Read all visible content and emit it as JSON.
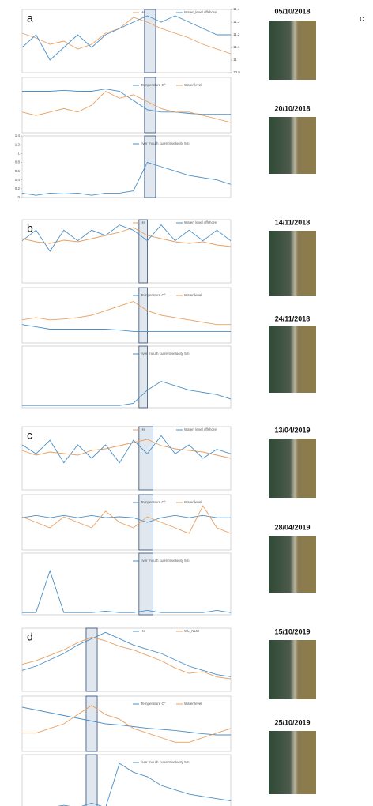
{
  "figure_label": "c",
  "panels": [
    {
      "letter": "a",
      "images": [
        "05/10/2018",
        "20/10/2018"
      ]
    },
    {
      "letter": "b",
      "images": [
        "14/11/2018",
        "24/11/2018"
      ]
    },
    {
      "letter": "c",
      "images": [
        "13/04/2019",
        "28/04/2019"
      ]
    },
    {
      "letter": "d",
      "images": [
        "15/10/2019",
        "25/10/2019"
      ]
    }
  ],
  "chart_data": [
    {
      "type": "line",
      "highlight": [
        8.8,
        9.6
      ],
      "ylim": [
        0,
        4
      ],
      "y2lim": [
        10.9,
        11.4
      ],
      "yticks": [
        11.4,
        11.3,
        11.2,
        11.1,
        11,
        10.9
      ],
      "yticks_axis": "y2",
      "series": [
        {
          "name": "Hs",
          "color": "#e8a060",
          "values": [
            2.5,
            2.2,
            1.8,
            2,
            1.5,
            1.8,
            2.5,
            2.8,
            3.5,
            3.2,
            2.8,
            2.5,
            2.2,
            1.8,
            1.5,
            1.2
          ]
        },
        {
          "name": "Water_level offshore",
          "color": "#4a90c8",
          "axis": "y2",
          "values": [
            11.1,
            11.2,
            11.0,
            11.1,
            11.2,
            11.1,
            11.2,
            11.25,
            11.3,
            11.35,
            11.3,
            11.35,
            11.3,
            11.25,
            11.2,
            11.2
          ]
        }
      ]
    },
    {
      "type": "line",
      "highlight": [
        8.8,
        9.6
      ],
      "ylim": [
        10,
        22
      ],
      "y2lim": [
        1,
        1.8
      ],
      "series": [
        {
          "name": "Temperature C°",
          "color": "#4a90c8",
          "values": [
            19,
            19,
            19,
            19.2,
            19,
            19,
            19.5,
            19,
            17,
            15,
            14.5,
            14.5,
            14.2,
            14,
            14,
            14
          ]
        },
        {
          "name": "Water level",
          "color": "#e8a060",
          "axis": "y2",
          "values": [
            1.3,
            1.25,
            1.3,
            1.35,
            1.3,
            1.4,
            1.6,
            1.5,
            1.55,
            1.45,
            1.35,
            1.3,
            1.3,
            1.25,
            1.2,
            1.15
          ]
        }
      ]
    },
    {
      "type": "line",
      "highlight": [
        8.8,
        9.6
      ],
      "ylim": [
        0,
        1.4
      ],
      "yticks": [
        1.4,
        1.2,
        1,
        0.8,
        0.6,
        0.4,
        0.2,
        0
      ],
      "series": [
        {
          "name": "river mouth current velocity 5m",
          "color": "#4a90c8",
          "values": [
            0.1,
            0.05,
            0.1,
            0.08,
            0.1,
            0.05,
            0.1,
            0.1,
            0.15,
            0.8,
            0.7,
            0.6,
            0.5,
            0.45,
            0.4,
            0.3
          ]
        }
      ]
    },
    {
      "type": "line",
      "highlight": [
        8.4,
        9.0
      ],
      "ylim": [
        0,
        4
      ],
      "y2lim": [
        10.8,
        11.4
      ],
      "series": [
        {
          "name": "Hs",
          "color": "#e8a060",
          "values": [
            2.8,
            2.6,
            2.5,
            2.7,
            2.6,
            2.8,
            3.0,
            3.2,
            3.5,
            3.0,
            2.8,
            2.6,
            2.5,
            2.6,
            2.4,
            2.3
          ]
        },
        {
          "name": "Water_level offshore",
          "color": "#4a90c8",
          "axis": "y2",
          "values": [
            11.2,
            11.3,
            11.1,
            11.3,
            11.2,
            11.3,
            11.25,
            11.35,
            11.3,
            11.2,
            11.35,
            11.2,
            11.3,
            11.2,
            11.3,
            11.2
          ]
        }
      ]
    },
    {
      "type": "line",
      "highlight": [
        8.4,
        9.0
      ],
      "ylim": [
        10,
        22
      ],
      "series": [
        {
          "name": "Temperature C°",
          "color": "#4a90c8",
          "values": [
            14,
            13.5,
            13,
            13,
            13,
            13,
            13,
            12.8,
            12.5,
            12.5,
            12.5,
            12.5,
            12.5,
            12.5,
            12.5,
            12.5
          ]
        },
        {
          "name": "Water level",
          "color": "#e8a060",
          "values": [
            15,
            15.5,
            15,
            15.2,
            15.5,
            16,
            17,
            18,
            19,
            17,
            16,
            15.5,
            15,
            14.5,
            14,
            14
          ]
        }
      ]
    },
    {
      "type": "line",
      "highlight": [
        8.4,
        9.0
      ],
      "ylim": [
        0,
        1.4
      ],
      "series": [
        {
          "name": "river mouth current velocity 5m",
          "color": "#4a90c8",
          "values": [
            0.05,
            0.05,
            0.05,
            0.05,
            0.05,
            0.05,
            0.05,
            0.05,
            0.1,
            0.4,
            0.6,
            0.5,
            0.4,
            0.35,
            0.3,
            0.2
          ]
        }
      ]
    },
    {
      "type": "line",
      "highlight": [
        8.4,
        9.4
      ],
      "ylim": [
        0,
        4
      ],
      "y2lim": [
        10.7,
        11.4
      ],
      "series": [
        {
          "name": "Hs",
          "color": "#e8a060",
          "values": [
            2.5,
            2.2,
            2.4,
            2.3,
            2.2,
            2.5,
            2.6,
            2.8,
            3,
            3.2,
            2.8,
            2.6,
            2.5,
            2.4,
            2.2,
            2
          ]
        },
        {
          "name": "Water_level offshore",
          "color": "#4a90c8",
          "axis": "y2",
          "values": [
            11.2,
            11.1,
            11.25,
            11.0,
            11.2,
            11.05,
            11.2,
            11.0,
            11.25,
            11.1,
            11.3,
            11.1,
            11.2,
            11.05,
            11.15,
            11.1
          ]
        }
      ]
    },
    {
      "type": "line",
      "highlight": [
        8.4,
        9.4
      ],
      "ylim": [
        10,
        22
      ],
      "y2lim": [
        0.8,
        1.8
      ],
      "series": [
        {
          "name": "Temperature C°",
          "color": "#4a90c8",
          "values": [
            17,
            17.5,
            17,
            17.5,
            17,
            17.5,
            17,
            17.2,
            17,
            16,
            17,
            17.5,
            17,
            17.5,
            17,
            17
          ]
        },
        {
          "name": "Water level",
          "color": "#e8a060",
          "axis": "y2",
          "values": [
            1.4,
            1.3,
            1.2,
            1.4,
            1.3,
            1.2,
            1.5,
            1.3,
            1.2,
            1.4,
            1.3,
            1.2,
            1.1,
            1.6,
            1.2,
            1.1
          ]
        }
      ]
    },
    {
      "type": "line",
      "highlight": [
        8.4,
        9.4
      ],
      "ylim": [
        0,
        1.4
      ],
      "series": [
        {
          "name": "river mouth current velocity 5m",
          "color": "#4a90c8",
          "values": [
            0.05,
            0.05,
            1.0,
            0.05,
            0.05,
            0.05,
            0.08,
            0.05,
            0.05,
            0.1,
            0.05,
            0.05,
            0.05,
            0.05,
            0.1,
            0.05
          ]
        }
      ]
    },
    {
      "type": "line",
      "highlight": [
        4.6,
        5.4
      ],
      "ylim": [
        0,
        3
      ],
      "y2lim": [
        0.5,
        4
      ],
      "series": [
        {
          "name": "Hs",
          "color": "#4a90c8",
          "values": [
            1,
            1.2,
            1.5,
            1.8,
            2.2,
            2.5,
            2.8,
            2.5,
            2.2,
            2,
            1.8,
            1.5,
            1.2,
            1,
            0.8,
            0.7
          ]
        },
        {
          "name": "WL_NLM",
          "color": "#e8a060",
          "axis": "y2",
          "values": [
            2,
            2.2,
            2.5,
            2.8,
            3.2,
            3.5,
            3.3,
            3,
            2.8,
            2.5,
            2.2,
            1.8,
            1.5,
            1.6,
            1.3,
            1.2
          ]
        }
      ]
    },
    {
      "type": "line",
      "highlight": [
        4.6,
        5.4
      ],
      "ylim": [
        10,
        20
      ],
      "y2lim": [
        0.8,
        2
      ],
      "series": [
        {
          "name": "Temperature C°",
          "color": "#4a90c8",
          "values": [
            18,
            17.5,
            17,
            16.5,
            16,
            15.5,
            15,
            14.8,
            14.5,
            14.2,
            14,
            13.8,
            13.5,
            13.2,
            13,
            13
          ]
        },
        {
          "name": "Water level",
          "color": "#e8a060",
          "axis": "y2",
          "values": [
            1.2,
            1.2,
            1.3,
            1.4,
            1.6,
            1.8,
            1.6,
            1.5,
            1.3,
            1.2,
            1.1,
            1.0,
            1.0,
            1.1,
            1.2,
            1.3
          ]
        }
      ]
    },
    {
      "type": "line",
      "highlight": [
        4.6,
        5.4
      ],
      "ylim": [
        0,
        1.4
      ],
      "series": [
        {
          "name": "river mouth current velocity 5m",
          "color": "#4a90c8",
          "values": [
            0.1,
            0.15,
            0.2,
            0.25,
            0.2,
            0.3,
            0.2,
            1.2,
            1.0,
            0.9,
            0.7,
            0.6,
            0.5,
            0.45,
            0.4,
            0.35
          ]
        }
      ]
    }
  ]
}
